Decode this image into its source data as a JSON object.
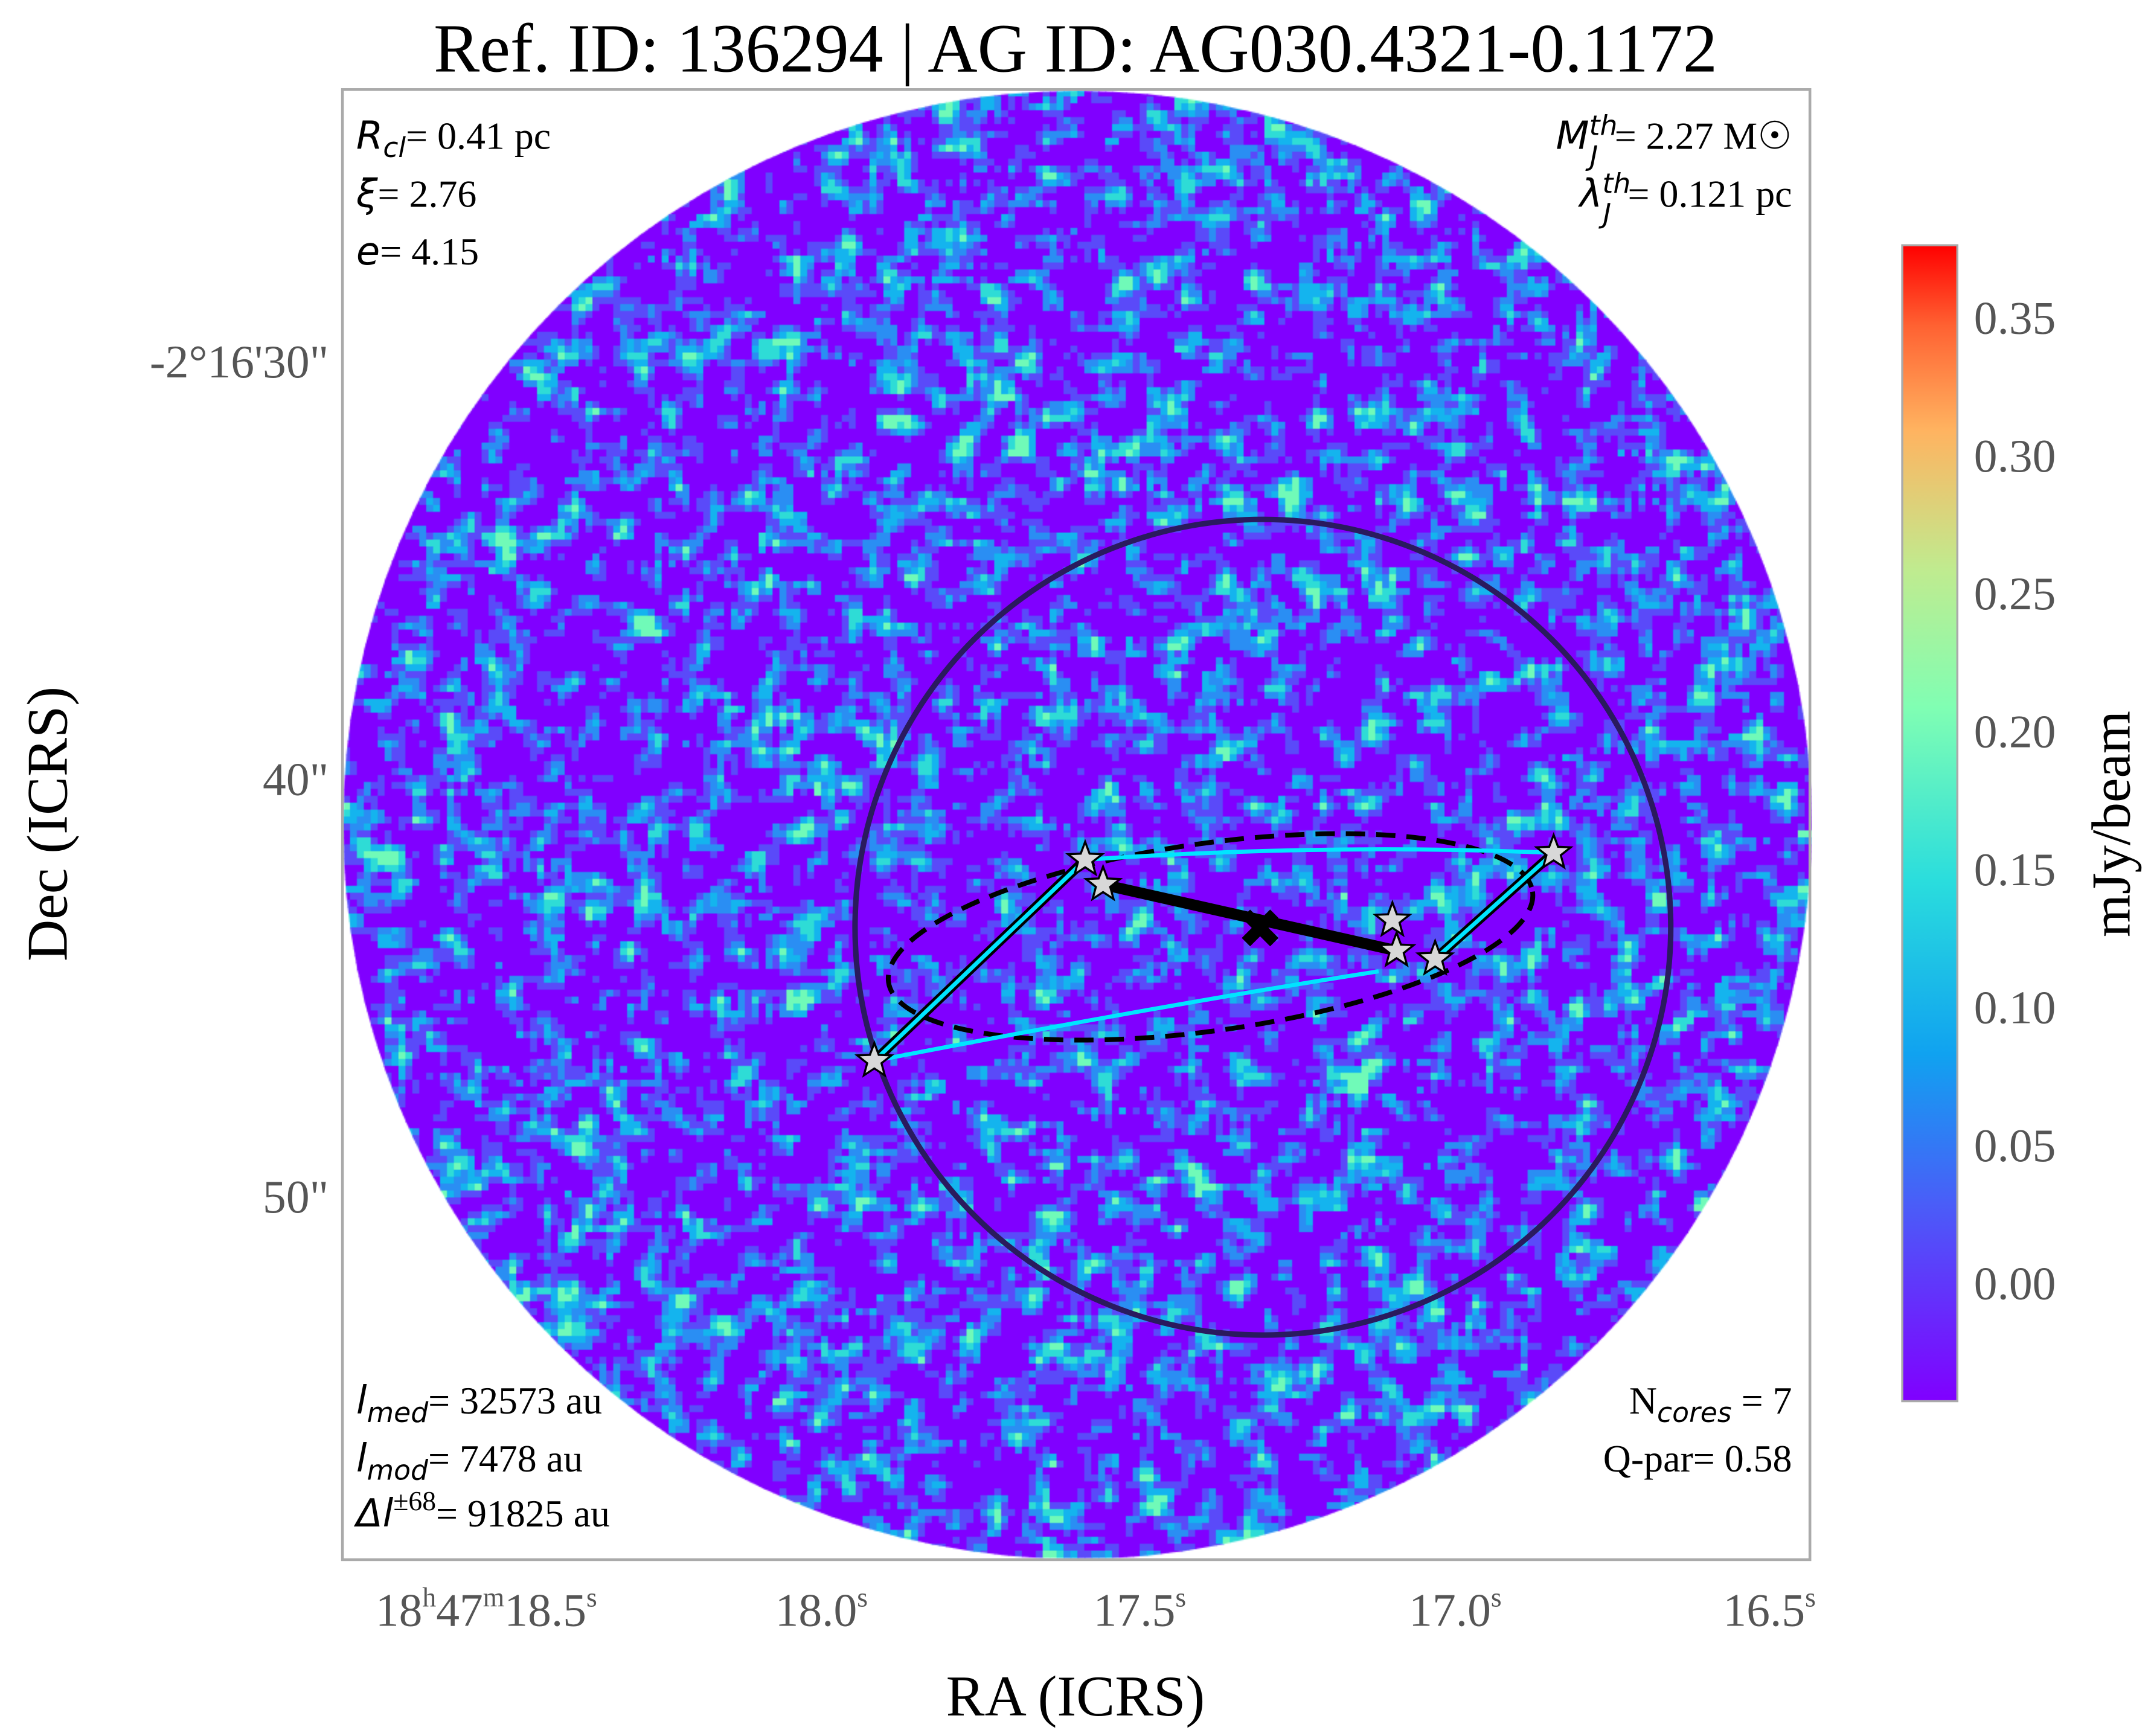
{
  "chart_data": {
    "type": "heatmap",
    "title": "Ref. ID: 136294 | AG ID: AG030.4321-0.1172",
    "xlabel": "RA (ICRS)",
    "ylabel": "Dec (ICRS)",
    "x_ticks": [
      {
        "h": "18",
        "m": "47",
        "s": "18.5",
        "label": "18h47m18.5s"
      },
      {
        "s": "18.0",
        "label": "18.0s"
      },
      {
        "s": "17.5",
        "label": "17.5s"
      },
      {
        "s": "17.0",
        "label": "17.0s"
      },
      {
        "s": "16.5",
        "label": "16.5s"
      }
    ],
    "y_ticks": [
      "-2°16'30\"",
      "40\"",
      "50\""
    ],
    "colorbar": {
      "label": "mJy/beam",
      "ticks": [
        "0.35",
        "0.30",
        "0.25",
        "0.20",
        "0.15",
        "0.10",
        "0.05",
        "0.00"
      ],
      "tick_values": [
        0.35,
        0.3,
        0.25,
        0.2,
        0.15,
        0.1,
        0.05,
        0.0
      ],
      "range": [
        -0.043,
        0.376
      ],
      "colormap": "rainbow"
    },
    "annotations": {
      "top_left": [
        {
          "sym": "R",
          "sub": "cl",
          "value": "= 0.41 pc"
        },
        {
          "sym": "ξ",
          "value": "= 2.76"
        },
        {
          "sym": "e",
          "value": "= 4.15"
        }
      ],
      "top_right": [
        {
          "sym": "M",
          "sub": "J",
          "sup": "th",
          "value": "= 2.27 M☉"
        },
        {
          "sym": "λ",
          "sub": "J",
          "sup": "th",
          "value": "= 0.121 pc"
        }
      ],
      "bottom_left": [
        {
          "sym": "l",
          "sub": "med",
          "value": "= 32573 au"
        },
        {
          "sym": "l",
          "sub": "mod",
          "value": "= 7478 au"
        },
        {
          "sym": "Δl",
          "sup": "±68",
          "value": "= 91825 au"
        }
      ],
      "bottom_right": [
        {
          "sym": "N",
          "sub": "cores",
          "value": " = 7"
        },
        {
          "sym": "Q-par",
          "value": "= 0.58"
        }
      ]
    },
    "n_cores": 7,
    "colors": {
      "mst_edges": "#00e5ff",
      "clump_circle": "#2a1a5e",
      "ellipse": "#000000",
      "core_star": "#d8d8d8",
      "frame": "#aaaaaa"
    }
  }
}
